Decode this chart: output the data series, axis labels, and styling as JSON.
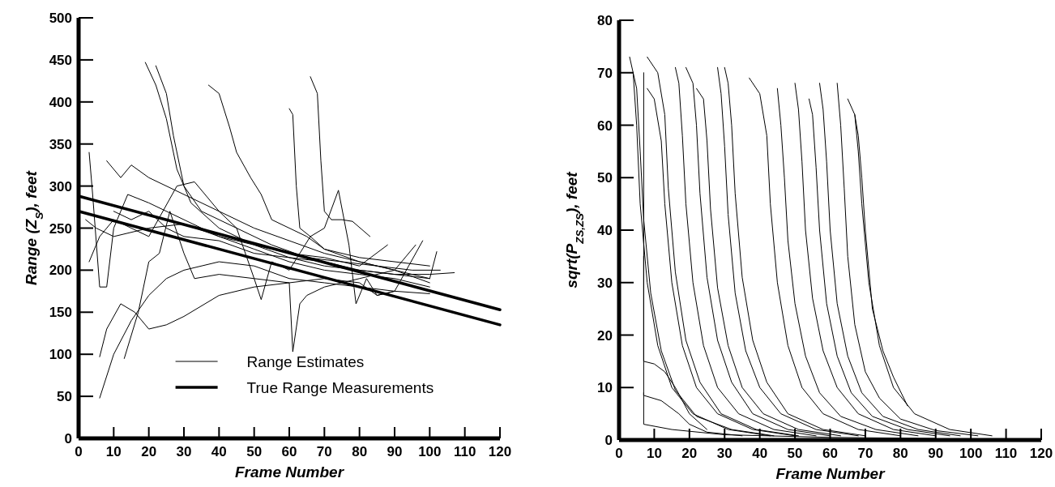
{
  "chart_data": [
    {
      "type": "line",
      "xlabel": "Frame Number",
      "ylabel": "Range (Z$_{S}$), feet",
      "xlim": [
        0,
        120
      ],
      "ylim": [
        0,
        500
      ],
      "xticks": [
        0,
        10,
        20,
        30,
        40,
        50,
        60,
        70,
        80,
        90,
        100,
        110,
        120
      ],
      "yticks": [
        0,
        50,
        100,
        150,
        200,
        250,
        300,
        350,
        400,
        450,
        500
      ],
      "grid": false,
      "legend": "bottom",
      "marker": "none",
      "line_style": "solid",
      "series": [
        {
          "name": "Range Estimates",
          "color": "#000000",
          "x": [
            19,
            22,
            25,
            28,
            32,
            40,
            50,
            60,
            70,
            80,
            90,
            100,
            107
          ],
          "values": [
            447,
            420,
            380,
            320,
            280,
            250,
            230,
            215,
            205,
            200,
            195,
            195,
            197
          ]
        },
        {
          "color": "#000000",
          "x": [
            22,
            25,
            27,
            30,
            35,
            45,
            55,
            65,
            75,
            85,
            95,
            103
          ],
          "values": [
            443,
            410,
            360,
            300,
            270,
            250,
            230,
            215,
            210,
            205,
            200,
            200
          ]
        },
        {
          "color": "#000000",
          "x": [
            37,
            40,
            43,
            45,
            49,
            52,
            55,
            60,
            65,
            70,
            80,
            90,
            100
          ],
          "values": [
            420,
            410,
            370,
            340,
            310,
            290,
            260,
            250,
            240,
            225,
            215,
            210,
            205
          ]
        },
        {
          "color": "#000000",
          "x": [
            60,
            61,
            62,
            63,
            66,
            70,
            80,
            90,
            100
          ],
          "values": [
            392,
            385,
            300,
            250,
            240,
            225,
            210,
            200,
            185
          ]
        },
        {
          "color": "#000000",
          "x": [
            66,
            68,
            69,
            70,
            72,
            75,
            78,
            83
          ],
          "values": [
            430,
            410,
            330,
            270,
            260,
            260,
            258,
            240
          ]
        },
        {
          "color": "#000000",
          "x": [
            3,
            4,
            6,
            8,
            10,
            14,
            20,
            30,
            40,
            50,
            60,
            70,
            80,
            90,
            100
          ],
          "values": [
            340,
            290,
            180,
            180,
            250,
            290,
            280,
            260,
            240,
            225,
            210,
            200,
            195,
            190,
            180
          ]
        },
        {
          "color": "#000000",
          "x": [
            6,
            10,
            15,
            20,
            25,
            30,
            40,
            50,
            60,
            70,
            80,
            90,
            100
          ],
          "values": [
            48,
            100,
            140,
            170,
            190,
            200,
            210,
            205,
            190,
            185,
            180,
            175,
            172
          ]
        },
        {
          "color": "#000000",
          "x": [
            6,
            8,
            12,
            16,
            20,
            25,
            30,
            40,
            50,
            60,
            70,
            80,
            85,
            90
          ],
          "values": [
            97,
            130,
            160,
            150,
            130,
            135,
            145,
            170,
            180,
            185,
            190,
            185,
            170,
            175
          ]
        },
        {
          "color": "#000000",
          "x": [
            13,
            17,
            20,
            23,
            26,
            30,
            33,
            40,
            50,
            60,
            61,
            63,
            65,
            70,
            80,
            90,
            96
          ],
          "values": [
            95,
            150,
            210,
            220,
            270,
            220,
            190,
            195,
            190,
            185,
            103,
            160,
            170,
            180,
            190,
            200,
            230
          ]
        },
        {
          "color": "#000000",
          "x": [
            8,
            12,
            15,
            20,
            30,
            40,
            50,
            60,
            70,
            80,
            90,
            100
          ],
          "values": [
            330,
            310,
            325,
            310,
            290,
            270,
            250,
            235,
            220,
            210,
            200,
            190
          ]
        },
        {
          "color": "#000000",
          "x": [
            3,
            6,
            10,
            15,
            20,
            28,
            33,
            36,
            40,
            45,
            50,
            52,
            55,
            60,
            66,
            70,
            74,
            77,
            79,
            82,
            85,
            90,
            98
          ],
          "values": [
            210,
            240,
            260,
            250,
            240,
            300,
            305,
            290,
            270,
            250,
            190,
            165,
            210,
            200,
            240,
            250,
            295,
            230,
            160,
            190,
            170,
            175,
            235
          ]
        },
        {
          "color": "#000000",
          "x": [
            10,
            15,
            20,
            25,
            30,
            40,
            50,
            60,
            70,
            80,
            90,
            100,
            102
          ],
          "values": [
            270,
            260,
            270,
            250,
            240,
            235,
            220,
            215,
            210,
            200,
            195,
            190,
            222
          ]
        },
        {
          "color": "#000000",
          "x": [
            2,
            5,
            10,
            20,
            30,
            40,
            50,
            60,
            70,
            80,
            88
          ],
          "values": [
            260,
            250,
            240,
            250,
            255,
            240,
            230,
            220,
            215,
            205,
            230
          ]
        },
        {
          "name": "True Range Measurements",
          "color": "#000000",
          "x": [
            0,
            120
          ],
          "values": [
            288,
            153
          ]
        },
        {
          "color": "#000000",
          "x": [
            0,
            120
          ],
          "values": [
            270,
            135
          ]
        }
      ]
    },
    {
      "type": "line",
      "xlabel": "Frame Number",
      "ylabel": "sqrt(P$_{ZS,ZS}$), feet",
      "xlim": [
        0,
        120
      ],
      "ylim": [
        0,
        80
      ],
      "xticks": [
        0,
        10,
        20,
        30,
        40,
        50,
        60,
        70,
        80,
        90,
        100,
        110,
        120
      ],
      "yticks": [
        0,
        10,
        20,
        30,
        40,
        50,
        60,
        70,
        80
      ],
      "grid": false,
      "legend": false,
      "marker": "none",
      "line_style": "solid",
      "series": [
        {
          "color": "#000000",
          "x": [
            3,
            4,
            5,
            6,
            8,
            11,
            15,
            21,
            31,
            43
          ],
          "values": [
            73,
            70,
            60,
            45,
            30,
            18,
            10,
            5,
            2,
            0.8
          ]
        },
        {
          "color": "#000000",
          "x": [
            4,
            5,
            6,
            7,
            9,
            12,
            16,
            22,
            32,
            44
          ],
          "values": [
            70,
            67,
            55,
            42,
            28,
            17,
            9.5,
            4.5,
            2,
            0.8
          ]
        },
        {
          "color": "#000000",
          "x": [
            8,
            10,
            12,
            13,
            15,
            18,
            22,
            28,
            38,
            50
          ],
          "values": [
            67,
            65,
            57,
            45,
            30,
            18,
            10,
            5,
            2,
            0.8
          ]
        },
        {
          "color": "#000000",
          "x": [
            8,
            11,
            13,
            14,
            16,
            19,
            23,
            29,
            39,
            51
          ],
          "values": [
            73,
            70,
            62,
            48,
            32,
            19,
            11,
            5,
            2,
            0.8
          ]
        },
        {
          "color": "#000000",
          "x": [
            16,
            17,
            18,
            19,
            21,
            24,
            28,
            34,
            44,
            56
          ],
          "values": [
            71,
            68,
            58,
            45,
            30,
            18,
            10,
            5,
            2,
            0.8
          ]
        },
        {
          "color": "#000000",
          "x": [
            19,
            21,
            22,
            23,
            25,
            28,
            32,
            38,
            48,
            60
          ],
          "values": [
            71,
            68,
            60,
            47,
            31,
            19,
            11,
            5,
            2,
            0.8
          ]
        },
        {
          "color": "#000000",
          "x": [
            22,
            24,
            25,
            26,
            28,
            31,
            35,
            41,
            51,
            63
          ],
          "values": [
            67,
            65,
            57,
            44,
            29,
            18,
            10,
            5,
            2,
            0.8
          ]
        },
        {
          "color": "#000000",
          "x": [
            28,
            29,
            30,
            31,
            33,
            36,
            40,
            46,
            56,
            68
          ],
          "values": [
            71,
            66,
            56,
            43,
            28,
            17,
            10,
            5,
            2,
            0.8
          ]
        },
        {
          "color": "#000000",
          "x": [
            30,
            31,
            32,
            33,
            35,
            38,
            42,
            48,
            58,
            70
          ],
          "values": [
            71,
            68,
            60,
            47,
            31,
            19,
            11,
            5,
            2,
            0.8
          ]
        },
        {
          "color": "#000000",
          "x": [
            37,
            40,
            42,
            43,
            45,
            48,
            52,
            58,
            68,
            80
          ],
          "values": [
            69,
            66,
            58,
            45,
            30,
            18,
            10,
            5,
            2,
            0.8
          ]
        },
        {
          "color": "#000000",
          "x": [
            45,
            46,
            47,
            48,
            50,
            53,
            57,
            63,
            73,
            85
          ],
          "values": [
            67,
            60,
            50,
            38,
            26,
            16,
            9,
            4.5,
            2,
            0.8
          ]
        },
        {
          "color": "#000000",
          "x": [
            50,
            51,
            52,
            53,
            55,
            58,
            62,
            68,
            78,
            90
          ],
          "values": [
            68,
            63,
            53,
            40,
            27,
            17,
            10,
            5,
            2,
            0.8
          ]
        },
        {
          "color": "#000000",
          "x": [
            54,
            55,
            56,
            57,
            59,
            62,
            66,
            72,
            82,
            94
          ],
          "values": [
            65,
            62,
            52,
            40,
            26,
            16,
            9,
            4.5,
            2,
            0.8
          ]
        },
        {
          "color": "#000000",
          "x": [
            57,
            58,
            59,
            60,
            62,
            65,
            69,
            75,
            85,
            97
          ],
          "values": [
            68,
            63,
            53,
            40,
            26,
            16,
            9,
            4.5,
            2,
            0.8
          ]
        },
        {
          "color": "#000000",
          "x": [
            62,
            63,
            64,
            65,
            67,
            70,
            74,
            80,
            90,
            102
          ],
          "values": [
            68,
            60,
            48,
            35,
            22,
            13,
            8,
            4,
            1.8,
            0.8
          ]
        },
        {
          "color": "#000000",
          "x": [
            65,
            67,
            68,
            69,
            71,
            74,
            78,
            84,
            94,
            106
          ],
          "values": [
            65,
            62,
            55,
            45,
            30,
            18,
            10,
            5,
            2,
            0.8
          ]
        },
        {
          "color": "#000000",
          "x": [
            67,
            68,
            69,
            70,
            72,
            75,
            78,
            82
          ],
          "values": [
            62,
            58,
            50,
            40,
            25,
            17,
            12,
            6.5
          ]
        },
        {
          "color": "#000000",
          "x": [
            7,
            7,
            10,
            13,
            16,
            20,
            25
          ],
          "values": [
            70,
            15,
            14.5,
            13,
            10,
            5,
            2
          ]
        },
        {
          "color": "#000000",
          "x": [
            7,
            7,
            12,
            17,
            20,
            25,
            35
          ],
          "values": [
            9,
            8.5,
            7.5,
            5,
            3,
            1.5,
            0.8
          ]
        },
        {
          "color": "#000000",
          "x": [
            7,
            7,
            15,
            30,
            60,
            90
          ],
          "values": [
            35,
            3,
            2,
            1,
            0.5,
            0.3
          ]
        }
      ]
    }
  ]
}
